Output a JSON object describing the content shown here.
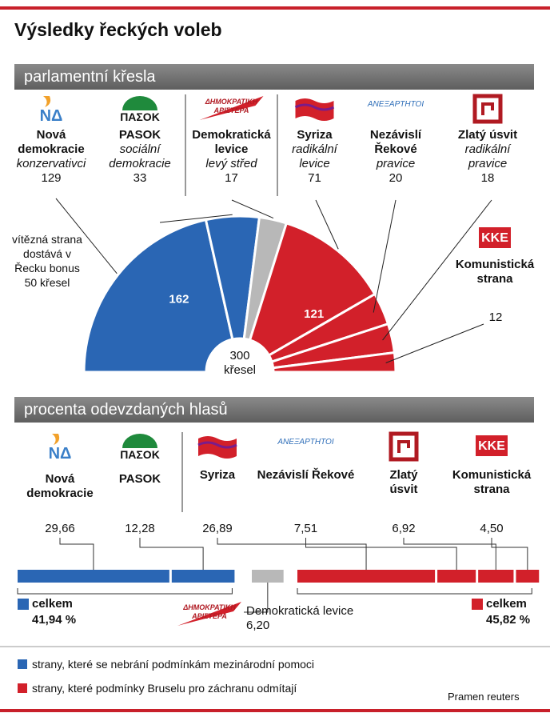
{
  "title": "Výsledky řeckých voleb",
  "seats": {
    "heading": "parlamentní křesla",
    "note": "vítězná strana dostává v Řecku bonus 50 křesel",
    "total": 300,
    "total_unit": "křesel",
    "blue_total": 162,
    "red_total": 121,
    "parties": [
      {
        "name": "Nová demokracie",
        "logo": "ΝΔ",
        "subtitle": "konzervativci",
        "seats": 129,
        "color": "#2a66b4"
      },
      {
        "name": "PASOK",
        "logo": "ΠΑΣΟΚ",
        "subtitle": "sociální demokracie",
        "seats": 33,
        "color": "#2a66b4"
      },
      {
        "name": "Demokratická levice",
        "logo": "ΔΗΜΟΚΡΑΤΙΚΗ ΑΡΙΣΤΕΡΑ",
        "subtitle": "levý střed",
        "seats": 17,
        "color": "#b8b8b8"
      },
      {
        "name": "Syriza",
        "subtitle": "radikální levice",
        "seats": 71,
        "color": "#d2202a"
      },
      {
        "name": "Nezávislí Řekové",
        "logo": "ΑΝΕΞΑΡΤΗΤΟΙ",
        "subtitle": "pravice",
        "seats": 20,
        "color": "#d2202a"
      },
      {
        "name": "Zlatý úsvit",
        "subtitle": "radikální pravice",
        "seats": 18,
        "color": "#d2202a"
      },
      {
        "name": "Komunistická strana",
        "logo": "KKE",
        "seats": 12,
        "color": "#d2202a"
      }
    ]
  },
  "votes": {
    "heading": "procenta odevzdaných hlasů",
    "parties": [
      {
        "name": "Nová demokracie",
        "logo": "ΝΔ",
        "value": 29.66,
        "label": "29,66",
        "color": "#2a66b4"
      },
      {
        "name": "PASOK",
        "logo": "ΠΑΣΟΚ",
        "value": 12.28,
        "label": "12,28",
        "color": "#2a66b4"
      },
      {
        "name": "Syriza",
        "value": 26.89,
        "label": "26,89",
        "color": "#d2202a"
      },
      {
        "name": "Nezávislí Řekové",
        "logo": "ΑΝΕΞΑΡΤΗΤΟΙ",
        "value": 7.51,
        "label": "7,51",
        "color": "#d2202a"
      },
      {
        "name": "Zlatý úsvit",
        "value": 6.92,
        "label": "6,92",
        "color": "#d2202a"
      },
      {
        "name": "Komunistická strana",
        "logo": "KKE",
        "value": 4.5,
        "label": "4,50",
        "color": "#d2202a"
      }
    ],
    "other": {
      "name": "Demokratická levice",
      "logo": "ΔΗΜΟΚΡΑΤΙΚΗ ΑΡΙΣΤΕΡΑ",
      "value": 6.2,
      "label": "6,20",
      "color": "#b8b8b8"
    },
    "blue_total": {
      "label": "celkem",
      "value": 41.94,
      "value_label": "41,94 %",
      "color": "#2a66b4"
    },
    "red_total": {
      "label": "celkem",
      "value": 45.82,
      "value_label": "45,82 %",
      "color": "#d2202a"
    }
  },
  "legend": [
    {
      "label": "strany, které se nebrání podmínkám mezinárodní pomoci",
      "color": "#2a66b4"
    },
    {
      "label": "strany, které podmínky Bruselu pro záchranu odmítají",
      "color": "#d2202a"
    }
  ],
  "source": "Pramen reuters"
}
